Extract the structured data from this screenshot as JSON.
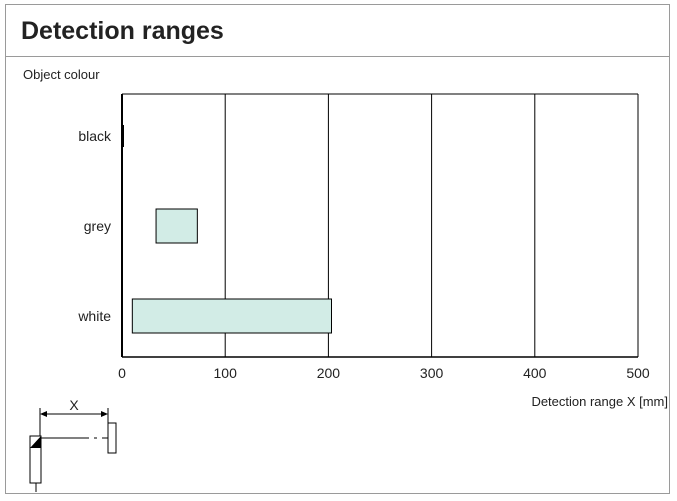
{
  "page": {
    "title": "Detection ranges"
  },
  "chart_data": {
    "type": "bar",
    "orientation": "horizontal",
    "bar_kind": "range",
    "title": "Detection ranges",
    "ylabel": "Object colour",
    "xlabel": "Detection range X [mm]",
    "categories": [
      "black",
      "grey",
      "white"
    ],
    "ranges": [
      {
        "category": "black",
        "start": 0,
        "end": 1
      },
      {
        "category": "grey",
        "start": 33,
        "end": 73
      },
      {
        "category": "white",
        "start": 10,
        "end": 203
      }
    ],
    "xlim": [
      0,
      500
    ],
    "xticks": [
      0,
      100,
      200,
      300,
      400,
      500
    ],
    "grid": "vertical",
    "bar_color": "#d2ece6",
    "bar_outline": "#000000"
  },
  "diagram": {
    "dimension_label": "X"
  }
}
